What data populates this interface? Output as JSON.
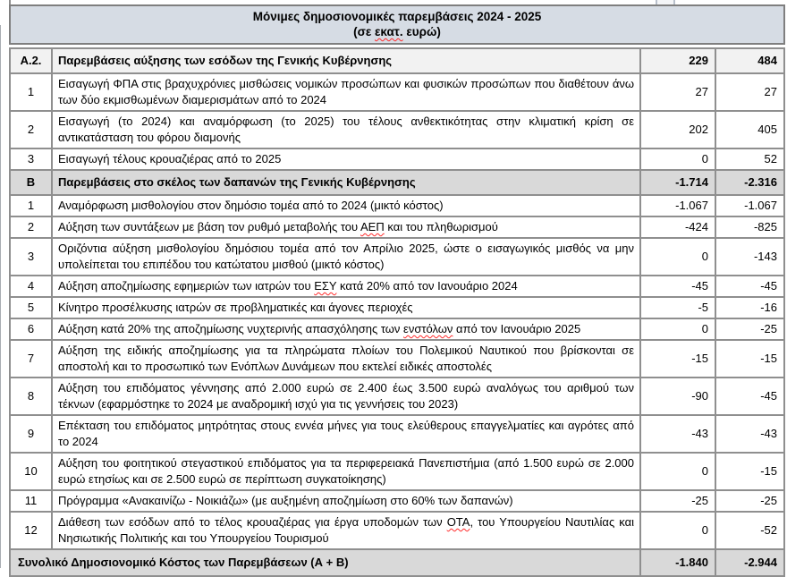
{
  "colors": {
    "title_bg": "#d6dce4",
    "section_light_bg": "#f2f2f2",
    "section_dark_bg": "#d9d9d9",
    "total_bg": "#d9d9d9",
    "border": "#8f8f8f",
    "outer_border": "#7f7f7f",
    "spellcheck": "#ff2b2b",
    "page_bg": "#ffffff",
    "text": "#000000"
  },
  "title": {
    "line1": "Μόνιμες δημοσιονομικές παρεμβάσεις 2024 - 2025",
    "line2": "(σε εκατ. ευρώ)",
    "misspelled": [
      "εκατ."
    ]
  },
  "rows": [
    {
      "kind": "section",
      "shade": "light",
      "num": "Α.2.",
      "desc": "Παρεμβάσεις αύξησης των εσόδων της Γενικής Κυβέρνησης",
      "values": [
        "229",
        "484"
      ]
    },
    {
      "kind": "item",
      "num": "1",
      "desc": "Εισαγωγή ΦΠΑ στις βραχυχρόνιες μισθώσεις νομικών προσώπων και φυσικών προσώπων που διαθέτουν άνω των δύο εκμισθωμένων διαμερισμάτων από το 2024",
      "values": [
        "27",
        "27"
      ]
    },
    {
      "kind": "item",
      "num": "2",
      "desc": "Εισαγωγή (το 2024) και αναμόρφωση (το 2025) του τέλους ανθεκτικότητας στην κλιματική κρίση σε αντικατάσταση του φόρου διαμονής",
      "values": [
        "202",
        "405"
      ]
    },
    {
      "kind": "item",
      "num": "3",
      "desc": "Εισαγωγή τέλους κρουαζιέρας από το 2025",
      "values": [
        "0",
        "52"
      ]
    },
    {
      "kind": "section",
      "shade": "dark",
      "num": "Β",
      "desc": "Παρεμβάσεις στο σκέλος των δαπανών της Γενικής Κυβέρνησης",
      "values": [
        "-1.714",
        "-2.316"
      ]
    },
    {
      "kind": "item",
      "num": "1",
      "desc": "Αναμόρφωση μισθολογίου στον δημόσιο τομέα από το 2024 (μικτό κόστος)",
      "values": [
        "-1.067",
        "-1.067"
      ]
    },
    {
      "kind": "item",
      "num": "2",
      "desc": "Αύξηση των συντάξεων με βάση τον ρυθμό μεταβολής του ΑΕΠ και του πληθωρισμού",
      "values": [
        "-424",
        "-825"
      ],
      "misspelled": [
        "ΑΕΠ"
      ]
    },
    {
      "kind": "item",
      "num": "3",
      "desc": "Οριζόντια αύξηση μισθολογίου δημόσιου τομέα από τον Απρίλιο 2025, ώστε ο εισαγωγικός μισθός να μην υπολείπεται του επιπέδου του κατώτατου μισθού (μικτό κόστος)",
      "values": [
        "0",
        "-143"
      ]
    },
    {
      "kind": "item",
      "num": "4",
      "desc": "Αύξηση αποζημίωσης εφημεριών των ιατρών του ΕΣΥ κατά 20% από τον Ιανουάριο 2024",
      "values": [
        "-45",
        "-45"
      ],
      "misspelled": [
        "ΕΣΥ"
      ]
    },
    {
      "kind": "item",
      "num": "5",
      "desc": "Κίνητρο προσέλκυσης ιατρών σε προβληματικές και άγονες περιοχές",
      "values": [
        "-5",
        "-16"
      ]
    },
    {
      "kind": "item",
      "num": "6",
      "desc": "Αύξηση κατά 20% της αποζημίωσης νυχτερινής απασχόλησης των ενστόλων από τον Ιανουάριο 2025",
      "values": [
        "0",
        "-25"
      ],
      "misspelled": [
        "ενστόλων"
      ]
    },
    {
      "kind": "item",
      "num": "7",
      "desc": "Αύξηση της ειδικής αποζημίωσης για τα πληρώματα πλοίων του Πολεμικού Ναυτικού που βρίσκονται σε αποστολή και το προσωπικό των Ενόπλων Δυνάμεων που εκτελεί ειδικές αποστολές",
      "values": [
        "-15",
        "-15"
      ]
    },
    {
      "kind": "item",
      "num": "8",
      "desc": "Αύξηση του επιδόματος γέννησης από 2.000 ευρώ σε 2.400 έως 3.500 ευρώ αναλόγως του αριθμού των τέκνων (εφαρμόστηκε το 2024 με αναδρομική ισχύ για τις γεννήσεις του 2023)",
      "values": [
        "-90",
        "-45"
      ]
    },
    {
      "kind": "item",
      "num": "9",
      "desc": "Επέκταση του επιδόματος μητρότητας στους εννέα μήνες για τους ελεύθερους επαγγελματίες και αγρότες από το 2024",
      "values": [
        "-43",
        "-43"
      ]
    },
    {
      "kind": "item",
      "num": "10",
      "desc": "Αύξηση του φοιτητικού στεγαστικού επιδόματος για τα περιφερειακά Πανεπιστήμια (από 1.500 ευρώ σε 2.000 ευρώ ετησίως και σε 2.500 ευρώ σε περίπτωση συγκατοίκησης)",
      "values": [
        "0",
        "-15"
      ]
    },
    {
      "kind": "item",
      "num": "11",
      "desc": "Πρόγραμμα «Ανακαινίζω - Νοικιάζω» (με αυξημένη αποζημίωση στο 60% των δαπανών)",
      "values": [
        "-25",
        "-25"
      ]
    },
    {
      "kind": "item",
      "num": "12",
      "desc": "Διάθεση των εσόδων από το τέλος κρουαζιέρας για έργα υποδομών των ΟΤΑ, του Υπουργείου Ναυτιλίας και Νησιωτικής Πολιτικής και του Υπουργείου Τουρισμού",
      "values": [
        "0",
        "-52"
      ],
      "misspelled": [
        "ΟΤΑ"
      ]
    },
    {
      "kind": "total",
      "desc": "Συνολικό Δημοσιονομικό Κόστος των Παρεμβάσεων (Α + Β)",
      "values": [
        "-1.840",
        "-2.944"
      ]
    }
  ]
}
